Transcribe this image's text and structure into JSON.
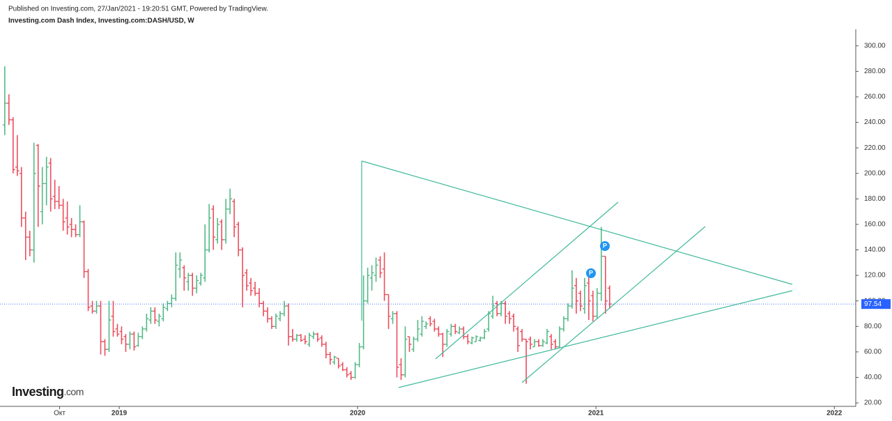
{
  "header": {
    "published": "Published on Investing.com, 27/Jan/2021 - 19:20:51 GMT, Powered by TradingView.",
    "instrument": "Investing.com Dash Index, Investing.com:DASH/USD, W"
  },
  "logo": [
    "Investing",
    ".com"
  ],
  "chart_data": {
    "type": "ohlc",
    "up_color": "#53b987",
    "down_color": "#eb4d5c",
    "xlim": [
      2018.5,
      2022.09
    ],
    "ylim": [
      17.3,
      313
    ],
    "xticks": [
      {
        "value": 2018.75,
        "label": "Окт"
      },
      2019,
      2020,
      2021,
      2022
    ],
    "yticks": [
      {
        "value": 20,
        "label": "20.00"
      },
      {
        "value": 40,
        "label": "40.00"
      },
      {
        "value": 60,
        "label": "60.00"
      },
      {
        "value": 80,
        "label": "80.00"
      },
      {
        "value": 100,
        "label": "100.00"
      },
      {
        "value": 120,
        "label": "120.00"
      },
      {
        "value": 140,
        "label": "140.00"
      },
      {
        "value": 160,
        "label": "160.00"
      },
      {
        "value": 180,
        "label": "180.00"
      },
      {
        "value": 200,
        "label": "200.00"
      },
      {
        "value": 220,
        "label": "220.00"
      },
      {
        "value": 240,
        "label": "240.00"
      },
      {
        "value": 260,
        "label": "260.00"
      },
      {
        "value": 280,
        "label": "280.00"
      },
      {
        "value": 300,
        "label": "300.00"
      }
    ],
    "grid": false,
    "price_line": {
      "value": 97.54,
      "label": "97.54",
      "color": "#2962ff"
    },
    "annotations": [
      "P",
      "P"
    ],
    "x": [
      2018.52,
      2018.5375,
      2018.555,
      2018.5725,
      2018.59,
      2018.6075,
      2018.625,
      2018.6425,
      2018.66,
      2018.6775,
      2018.695,
      2018.7125,
      2018.73,
      2018.7475,
      2018.765,
      2018.7825,
      2018.8,
      2018.8175,
      2018.835,
      2018.8525,
      2018.87,
      2018.8875,
      2018.905,
      2018.9225,
      2018.94,
      2018.9575,
      2018.975,
      2018.9925,
      2019.01,
      2019.0275,
      2019.045,
      2019.0625,
      2019.08,
      2019.0975,
      2019.115,
      2019.1325,
      2019.15,
      2019.1675,
      2019.185,
      2019.2025,
      2019.22,
      2019.2375,
      2019.255,
      2019.2725,
      2019.29,
      2019.3075,
      2019.325,
      2019.3425,
      2019.36,
      2019.3775,
      2019.395,
      2019.4125,
      2019.43,
      2019.4475,
      2019.465,
      2019.4825,
      2019.5,
      2019.5175,
      2019.535,
      2019.5525,
      2019.57,
      2019.5875,
      2019.605,
      2019.6225,
      2019.64,
      2019.6575,
      2019.675,
      2019.6925,
      2019.71,
      2019.7275,
      2019.745,
      2019.7625,
      2019.78,
      2019.7975,
      2019.815,
      2019.8325,
      2019.85,
      2019.8675,
      2019.885,
      2019.9025,
      2019.92,
      2019.9375,
      2019.955,
      2019.9725,
      2019.99,
      2020.0075,
      2020.025,
      2020.0425,
      2020.06,
      2020.0775,
      2020.095,
      2020.1125,
      2020.13,
      2020.1475,
      2020.165,
      2020.1825,
      2020.2,
      2020.2175,
      2020.235,
      2020.2525,
      2020.27,
      2020.2875,
      2020.305,
      2020.3225,
      2020.34,
      2020.3575,
      2020.375,
      2020.3925,
      2020.41,
      2020.4275,
      2020.445,
      2020.4625,
      2020.48,
      2020.4975,
      2020.515,
      2020.5325,
      2020.55,
      2020.5675,
      2020.585,
      2020.6025,
      2020.62,
      2020.6375,
      2020.655,
      2020.6725,
      2020.69,
      2020.7075,
      2020.725,
      2020.7425,
      2020.76,
      2020.7775,
      2020.795,
      2020.8125,
      2020.83,
      2020.8475,
      2020.865,
      2020.8825,
      2020.9,
      2020.9175,
      2020.935,
      2020.9525,
      2020.97,
      2020.9875,
      2021.005,
      2021.0225,
      2021.04,
      2021.0575
    ],
    "ohlc": [
      [
        238,
        284,
        230,
        255
      ],
      [
        255,
        262,
        238,
        242
      ],
      [
        242,
        244,
        200,
        203
      ],
      [
        205,
        230,
        198,
        202
      ],
      [
        200,
        205,
        158,
        165
      ],
      [
        165,
        170,
        132,
        150
      ],
      [
        150,
        155,
        135,
        140
      ],
      [
        140,
        224,
        130,
        200
      ],
      [
        222,
        223,
        158,
        190
      ],
      [
        170,
        205,
        160,
        192
      ],
      [
        192,
        213,
        175,
        205
      ],
      [
        208,
        212,
        170,
        180
      ],
      [
        182,
        195,
        172,
        178
      ],
      [
        178,
        190,
        172,
        175
      ],
      [
        175,
        180,
        155,
        162
      ],
      [
        165,
        178,
        152,
        158
      ],
      [
        160,
        165,
        150,
        156
      ],
      [
        156,
        160,
        150,
        152
      ],
      [
        152,
        175,
        150,
        162
      ],
      [
        162,
        163,
        118,
        123
      ],
      [
        123,
        125,
        92,
        95
      ],
      [
        96,
        100,
        90,
        92
      ],
      [
        92,
        100,
        90,
        96
      ],
      [
        96,
        100,
        58,
        68
      ],
      [
        68,
        70,
        57,
        62
      ],
      [
        62,
        100,
        60,
        85
      ],
      [
        88,
        100,
        72,
        76
      ],
      [
        78,
        82,
        72,
        74
      ],
      [
        76,
        80,
        66,
        70
      ],
      [
        72,
        74,
        60,
        66
      ],
      [
        66,
        76,
        62,
        74
      ],
      [
        74,
        76,
        61,
        64
      ],
      [
        65,
        75,
        64,
        72
      ],
      [
        72,
        80,
        70,
        78
      ],
      [
        78,
        90,
        76,
        86
      ],
      [
        85,
        95,
        82,
        92
      ],
      [
        92,
        95,
        82,
        85
      ],
      [
        84,
        90,
        80,
        88
      ],
      [
        86,
        98,
        84,
        95
      ],
      [
        94,
        100,
        92,
        98
      ],
      [
        98,
        105,
        95,
        102
      ],
      [
        102,
        138,
        100,
        128
      ],
      [
        125,
        138,
        118,
        132
      ],
      [
        126,
        128,
        108,
        118
      ],
      [
        115,
        122,
        108,
        120
      ],
      [
        120,
        122,
        104,
        110
      ],
      [
        110,
        120,
        106,
        116
      ],
      [
        114,
        122,
        112,
        120
      ],
      [
        118,
        160,
        115,
        140
      ],
      [
        140,
        176,
        138,
        165
      ],
      [
        172,
        175,
        140,
        150
      ],
      [
        148,
        165,
        145,
        160
      ],
      [
        162,
        164,
        140,
        148
      ],
      [
        148,
        180,
        145,
        172
      ],
      [
        172,
        188,
        168,
        180
      ],
      [
        178,
        180,
        150,
        158
      ],
      [
        160,
        162,
        135,
        140
      ],
      [
        140,
        142,
        95,
        120
      ],
      [
        122,
        125,
        108,
        112
      ],
      [
        114,
        118,
        104,
        108
      ],
      [
        110,
        115,
        104,
        106
      ],
      [
        106,
        110,
        95,
        98
      ],
      [
        98,
        100,
        88,
        92
      ],
      [
        92,
        95,
        83,
        86
      ],
      [
        86,
        88,
        78,
        80
      ],
      [
        80,
        90,
        78,
        88
      ],
      [
        86,
        92,
        84,
        90
      ],
      [
        90,
        100,
        88,
        96
      ],
      [
        96,
        98,
        65,
        72
      ],
      [
        72,
        78,
        68,
        70
      ],
      [
        70,
        74,
        68,
        73
      ],
      [
        73,
        74,
        68,
        69
      ],
      [
        70,
        73,
        66,
        68
      ],
      [
        66,
        75,
        64,
        73
      ],
      [
        72,
        76,
        70,
        74
      ],
      [
        74,
        75,
        68,
        70
      ],
      [
        71,
        73,
        64,
        66
      ],
      [
        66,
        68,
        55,
        58
      ],
      [
        58,
        60,
        50,
        54
      ],
      [
        52,
        57,
        50,
        56
      ],
      [
        55,
        55,
        47,
        49
      ],
      [
        50,
        52,
        45,
        46
      ],
      [
        46,
        48,
        40,
        42
      ],
      [
        43,
        45,
        38,
        40
      ],
      [
        40,
        52,
        39,
        50
      ],
      [
        50,
        67,
        48,
        64
      ],
      [
        64,
        120,
        62,
        100
      ],
      [
        100,
        126,
        98,
        120
      ],
      [
        118,
        128,
        108,
        122
      ],
      [
        120,
        134,
        115,
        128
      ],
      [
        132,
        135,
        118,
        122
      ],
      [
        125,
        138,
        100,
        105
      ],
      [
        105,
        105,
        78,
        88
      ],
      [
        86,
        92,
        82,
        90
      ],
      [
        90,
        92,
        40,
        48
      ],
      [
        50,
        55,
        38,
        42
      ],
      [
        42,
        80,
        40,
        70
      ],
      [
        72,
        72,
        60,
        66
      ],
      [
        62,
        72,
        60,
        70
      ],
      [
        70,
        85,
        68,
        78
      ],
      [
        74,
        88,
        72,
        84
      ],
      [
        80,
        84,
        78,
        82
      ],
      [
        86,
        88,
        80,
        82
      ],
      [
        84,
        86,
        76,
        78
      ],
      [
        78,
        80,
        72,
        74
      ],
      [
        74,
        75,
        56,
        66
      ],
      [
        66,
        78,
        64,
        76
      ],
      [
        74,
        82,
        72,
        80
      ],
      [
        80,
        82,
        74,
        76
      ],
      [
        75,
        80,
        74,
        78
      ],
      [
        78,
        80,
        70,
        72
      ],
      [
        72,
        74,
        66,
        68
      ],
      [
        67,
        72,
        66,
        71
      ],
      [
        68,
        73,
        68,
        72
      ],
      [
        69,
        72,
        68,
        71
      ],
      [
        71,
        78,
        70,
        76
      ],
      [
        78,
        92,
        76,
        90
      ],
      [
        88,
        104,
        86,
        96
      ],
      [
        98,
        100,
        88,
        90
      ],
      [
        90,
        100,
        88,
        98
      ],
      [
        98,
        100,
        82,
        88
      ],
      [
        90,
        92,
        82,
        86
      ],
      [
        88,
        90,
        76,
        80
      ],
      [
        78,
        80,
        60,
        65
      ],
      [
        76,
        78,
        68,
        70
      ],
      [
        70,
        70,
        35,
        68
      ],
      [
        70,
        72,
        62,
        66
      ],
      [
        64,
        70,
        64,
        68
      ],
      [
        68,
        70,
        64,
        65
      ],
      [
        65,
        70,
        64,
        68
      ],
      [
        67,
        78,
        66,
        76
      ],
      [
        72,
        74,
        62,
        66
      ],
      [
        68,
        70,
        62,
        64
      ],
      [
        64,
        80,
        63,
        78
      ],
      [
        78,
        88,
        76,
        86
      ],
      [
        86,
        98,
        84,
        96
      ],
      [
        96,
        124,
        94,
        110
      ],
      [
        112,
        118,
        90,
        100
      ],
      [
        106,
        108,
        92,
        96
      ],
      [
        94,
        118,
        90,
        112
      ],
      [
        114,
        120,
        85,
        100
      ],
      [
        104,
        108,
        84,
        88
      ],
      [
        88,
        110,
        86,
        106
      ],
      [
        106,
        158,
        100,
        135
      ],
      [
        135,
        135,
        90,
        100
      ],
      [
        110,
        112,
        94,
        97.54
      ]
    ]
  }
}
